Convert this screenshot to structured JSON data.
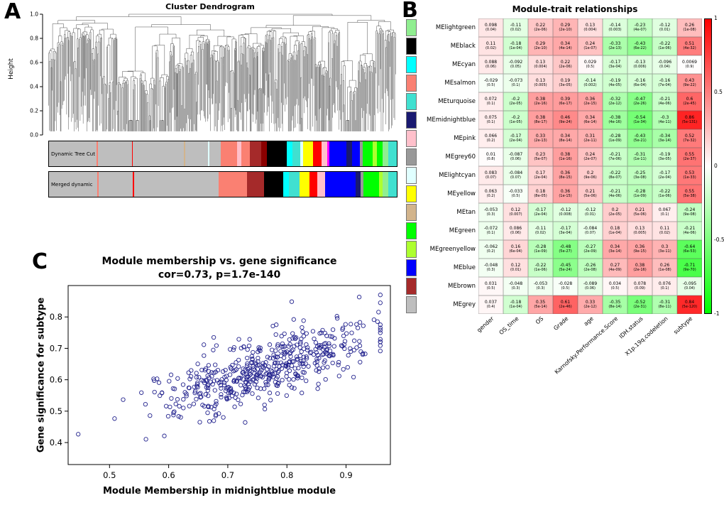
{
  "panel_labels": {
    "a": "A",
    "b": "B",
    "c": "C"
  },
  "chart_data": [
    {
      "type": "dendrogram",
      "title": "Cluster Dendrogram",
      "ylabel": "Height",
      "ylim": [
        0,
        1
      ],
      "yticks": [
        "1.0",
        "0.8",
        "0.6",
        "0.4",
        "0.2",
        "0.0"
      ],
      "bands": [
        {
          "label": "Dynamic Tree Cut",
          "segments": [
            [
              "#bebebe",
              17
            ],
            [
              "#fa8072",
              0.5
            ],
            [
              "#bebebe",
              12
            ],
            [
              "#ff0000",
              0.4
            ],
            [
              "#bebebe",
              18
            ],
            [
              "#d2b48c",
              0.6
            ],
            [
              "#bebebe",
              8
            ],
            [
              "#e0ffff",
              0.5
            ],
            [
              "#bebebe",
              4
            ],
            [
              "#fa8072",
              6
            ],
            [
              "#ffc0cb",
              1.5
            ],
            [
              "#fa8072",
              3
            ],
            [
              "#a52a2a",
              4
            ],
            [
              "#8b0000",
              2
            ],
            [
              "#000000",
              7
            ],
            [
              "#00ffff",
              2
            ],
            [
              "#40e0d0",
              3
            ],
            [
              "#e0ffff",
              1
            ],
            [
              "#ffff00",
              3.5
            ],
            [
              "#ff0000",
              3
            ],
            [
              "#ffc0cb",
              2
            ],
            [
              "#ff00ff",
              0.7
            ],
            [
              "#0000ff",
              6
            ],
            [
              "#191970",
              2
            ],
            [
              "#0000ff",
              3
            ],
            [
              "#999999",
              1
            ],
            [
              "#00ff00",
              3.5
            ],
            [
              "#adff2f",
              1.5
            ],
            [
              "#00ff00",
              2
            ],
            [
              "#90ee90",
              2
            ],
            [
              "#40e0d0",
              3
            ]
          ]
        },
        {
          "label": "Merged dynamic",
          "segments": [
            [
              "#bebebe",
              17.5
            ],
            [
              "#fa8072",
              0.5
            ],
            [
              "#bebebe",
              12.4
            ],
            [
              "#ff0000",
              0.4
            ],
            [
              "#bebebe",
              26.6
            ],
            [
              "#bebebe",
              4
            ],
            [
              "#fa8072",
              10.5
            ],
            [
              "#a52a2a",
              6
            ],
            [
              "#000000",
              7
            ],
            [
              "#00ffff",
              2
            ],
            [
              "#40e0d0",
              4
            ],
            [
              "#ffff00",
              3.5
            ],
            [
              "#ff0000",
              3
            ],
            [
              "#ffc0cb",
              2.7
            ],
            [
              "#0000ff",
              11
            ],
            [
              "#191970",
              2
            ],
            [
              "#999999",
              1
            ],
            [
              "#00ff00",
              5.5
            ],
            [
              "#adff2f",
              1.5
            ],
            [
              "#90ee90",
              2
            ],
            [
              "#40e0d0",
              3
            ]
          ]
        }
      ]
    },
    {
      "type": "heatmap",
      "title": "Module-trait relationships",
      "legend_ticks": [
        "1",
        "0.5",
        "0",
        "-0.5",
        "-1"
      ],
      "columns": [
        "gender",
        "OS_time",
        "OS",
        "Grade",
        "age",
        "Karnofsky.Performance.Score",
        "IDH.status",
        "X1p.19q.codeletion",
        "subtype"
      ],
      "rows": [
        {
          "label": "MElightgreen",
          "color": "#90ee90",
          "cells": [
            [
              "0.098",
              "(0.04)"
            ],
            [
              "-0.11",
              "(0.02)"
            ],
            [
              "0.22",
              "(2e-06)"
            ],
            [
              "0.29",
              "(2e-10)"
            ],
            [
              "0.13",
              "(0.004)"
            ],
            [
              "-0.14",
              "(0.003)"
            ],
            [
              "-0.23",
              "(4e-07)"
            ],
            [
              "-0.12",
              "(0.01)"
            ],
            [
              "0.26",
              "(1e-08)"
            ]
          ]
        },
        {
          "label": "MEblack",
          "color": "#000000",
          "cells": [
            [
              "0.11",
              "(0.02)"
            ],
            [
              "-0.18",
              "(1e-04)"
            ],
            [
              "0.29",
              "(2e-10)"
            ],
            [
              "0.34",
              "(4e-14)"
            ],
            [
              "0.24",
              "(1e-07)"
            ],
            [
              "-0.33",
              "(2e-13)"
            ],
            [
              "-0.43",
              "(6e-22)"
            ],
            [
              "-0.22",
              "(1e-06)"
            ],
            [
              "0.51",
              "(4e-32)"
            ]
          ]
        },
        {
          "label": "MEcyan",
          "color": "#00ffff",
          "cells": [
            [
              "0.088",
              "(0.06)"
            ],
            [
              "-0.092",
              "(0.05)"
            ],
            [
              "0.13",
              "(0.004)"
            ],
            [
              "0.22",
              "(2e-06)"
            ],
            [
              "0.029",
              "(0.5)"
            ],
            [
              "-0.17",
              "(3e-04)"
            ],
            [
              "-0.13",
              "(0.006)"
            ],
            [
              "-0.096",
              "(0.04)"
            ],
            [
              "0.0069",
              "(0.9)"
            ]
          ]
        },
        {
          "label": "MEsalmon",
          "color": "#fa8072",
          "cells": [
            [
              "-0.029",
              "(0.5)"
            ],
            [
              "-0.073",
              "(0.1)"
            ],
            [
              "0.13",
              "(0.005)"
            ],
            [
              "0.19",
              "(3e-05)"
            ],
            [
              "-0.14",
              "(0.002)"
            ],
            [
              "-0.19",
              "(4e-05)"
            ],
            [
              "-0.16",
              "(6e-04)"
            ],
            [
              "-0.16",
              "(7e-04)"
            ],
            [
              "0.43",
              "(9e-22)"
            ]
          ]
        },
        {
          "label": "MEturquoise",
          "color": "#40e0d0",
          "cells": [
            [
              "0.072",
              "(0.1)"
            ],
            [
              "-0.2",
              "(2e-05)"
            ],
            [
              "0.38",
              "(2e-16)"
            ],
            [
              "0.39",
              "(6e-17)"
            ],
            [
              "0.36",
              "(2e-15)"
            ],
            [
              "-0.32",
              "(2e-12)"
            ],
            [
              "-0.47",
              "(2e-26)"
            ],
            [
              "-0.21",
              "(4e-06)"
            ],
            [
              "0.6",
              "(2e-45)"
            ]
          ]
        },
        {
          "label": "MEmidnightblue",
          "color": "#191970",
          "cells": [
            [
              "0.075",
              "(0.1)"
            ],
            [
              "-0.2",
              "(1e-05)"
            ],
            [
              "0.38",
              "(8e-17)"
            ],
            [
              "0.46",
              "(9e-24)"
            ],
            [
              "0.34",
              "(6e-14)"
            ],
            [
              "-0.38",
              "(4e-16)"
            ],
            [
              "-0.54",
              "(1e-34)"
            ],
            [
              "-0.3",
              "(4e-11)"
            ],
            [
              "0.86",
              "(5e-131)"
            ]
          ]
        },
        {
          "label": "MEpink",
          "color": "#ffc0cb",
          "cells": [
            [
              "0.066",
              "(0.2)"
            ],
            [
              "-0.17",
              "(2e-04)"
            ],
            [
              "0.33",
              "(2e-13)"
            ],
            [
              "0.34",
              "(8e-14)"
            ],
            [
              "0.31",
              "(2e-11)"
            ],
            [
              "-0.28",
              "(1e-09)"
            ],
            [
              "-0.43",
              "(5e-21)"
            ],
            [
              "-0.34",
              "(3e-14)"
            ],
            [
              "0.52",
              "(7e-32)"
            ]
          ]
        },
        {
          "label": "MEgrey60",
          "color": "#999999",
          "cells": [
            [
              "0.01",
              "(0.8)"
            ],
            [
              "-0.087",
              "(0.06)"
            ],
            [
              "0.23",
              "(5e-07)"
            ],
            [
              "0.38",
              "(1e-16)"
            ],
            [
              "0.24",
              "(2e-07)"
            ],
            [
              "-0.21",
              "(7e-06)"
            ],
            [
              "-0.31",
              "(1e-11)"
            ],
            [
              "-0.19",
              "(3e-05)"
            ],
            [
              "0.55",
              "(2e-37)"
            ]
          ]
        },
        {
          "label": "MElightcyan",
          "color": "#e0ffff",
          "cells": [
            [
              "0.083",
              "(0.07)"
            ],
            [
              "-0.084",
              "(0.07)"
            ],
            [
              "0.17",
              "(2e-04)"
            ],
            [
              "0.36",
              "(8e-15)"
            ],
            [
              "0.2",
              "(9e-06)"
            ],
            [
              "-0.22",
              "(8e-07)"
            ],
            [
              "-0.25",
              "(3e-08)"
            ],
            [
              "-0.17",
              "(2e-04)"
            ],
            [
              "0.53",
              "(1e-33)"
            ]
          ]
        },
        {
          "label": "MEyellow",
          "color": "#ffff00",
          "cells": [
            [
              "0.063",
              "(0.2)"
            ],
            [
              "-0.033",
              "(0.5)"
            ],
            [
              "0.18",
              "(8e-05)"
            ],
            [
              "0.36",
              "(1e-15)"
            ],
            [
              "0.21",
              "(5e-06)"
            ],
            [
              "-0.21",
              "(4e-06)"
            ],
            [
              "-0.28",
              "(1e-09)"
            ],
            [
              "-0.22",
              "(1e-06)"
            ],
            [
              "0.55",
              "(5e-38)"
            ]
          ]
        },
        {
          "label": "MEtan",
          "color": "#d2b48c",
          "cells": [
            [
              "-0.053",
              "(0.3)"
            ],
            [
              "0.12",
              "(0.007)"
            ],
            [
              "-0.17",
              "(2e-04)"
            ],
            [
              "-0.12",
              "(0.008)"
            ],
            [
              "-0.12",
              "(0.01)"
            ],
            [
              "0.2",
              "(2e-05)"
            ],
            [
              "0.21",
              "(5e-06)"
            ],
            [
              "0.067",
              "(0.1)"
            ],
            [
              "-0.24",
              "(9e-08)"
            ]
          ]
        },
        {
          "label": "MEgreen",
          "color": "#00ff00",
          "cells": [
            [
              "-0.072",
              "(0.1)"
            ],
            [
              "0.086",
              "(0.06)"
            ],
            [
              "-0.11",
              "(0.02)"
            ],
            [
              "-0.17",
              "(3e-04)"
            ],
            [
              "-0.084",
              "(0.07)"
            ],
            [
              "0.18",
              "(1e-04)"
            ],
            [
              "0.13",
              "(0.005)"
            ],
            [
              "0.11",
              "(0.02)"
            ],
            [
              "-0.21",
              "(4e-06)"
            ]
          ]
        },
        {
          "label": "MEgreenyellow",
          "color": "#adff2f",
          "cells": [
            [
              "-0.062",
              "(0.2)"
            ],
            [
              "0.16",
              "(6e-04)"
            ],
            [
              "-0.28",
              "(1e-09)"
            ],
            [
              "-0.48",
              "(5e-27)"
            ],
            [
              "-0.27",
              "(2e-09)"
            ],
            [
              "0.34",
              "(3e-14)"
            ],
            [
              "0.36",
              "(9e-15)"
            ],
            [
              "0.3",
              "(3e-11)"
            ],
            [
              "-0.64",
              "(6e-53)"
            ]
          ]
        },
        {
          "label": "MEblue",
          "color": "#0000ff",
          "cells": [
            [
              "-0.048",
              "(0.3)"
            ],
            [
              "0.12",
              "(0.01)"
            ],
            [
              "-0.22",
              "(1e-06)"
            ],
            [
              "-0.45",
              "(5e-24)"
            ],
            [
              "-0.26",
              "(2e-08)"
            ],
            [
              "0.27",
              "(4e-09)"
            ],
            [
              "0.38",
              "(2e-16)"
            ],
            [
              "0.26",
              "(1e-08)"
            ],
            [
              "-0.71",
              "(9e-70)"
            ]
          ]
        },
        {
          "label": "MEbrown",
          "color": "#a52a2a",
          "cells": [
            [
              "0.031",
              "(0.5)"
            ],
            [
              "-0.048",
              "(0.3)"
            ],
            [
              "-0.053",
              "(0.3)"
            ],
            [
              "-0.028",
              "(0.5)"
            ],
            [
              "-0.089",
              "(0.06)"
            ],
            [
              "0.034",
              "(0.5)"
            ],
            [
              "0.078",
              "(0.09)"
            ],
            [
              "0.076",
              "(0.1)"
            ],
            [
              "-0.095",
              "(0.04)"
            ]
          ]
        },
        {
          "label": "MEgrey",
          "color": "#bebebe",
          "cells": [
            [
              "0.037",
              "(0.4)"
            ],
            [
              "-0.18",
              "(1e-04)"
            ],
            [
              "0.35",
              "(5e-14)"
            ],
            [
              "0.61",
              "(2e-46)"
            ],
            [
              "0.33",
              "(2e-12)"
            ],
            [
              "-0.35",
              "(8e-14)"
            ],
            [
              "-0.52",
              "(2e-31)"
            ],
            [
              "-0.31",
              "(8e-11)"
            ],
            [
              "0.84",
              "(5e-120)"
            ]
          ]
        }
      ]
    },
    {
      "type": "scatter",
      "title": "Module membership vs. gene significance",
      "subtitle": "cor=0.73, p=1.7e-140",
      "xlabel": "Module Membership in midnightblue module",
      "ylabel": "Gene significance for subtype",
      "xticks": [
        "0.5",
        "0.6",
        "0.7",
        "0.8",
        "0.9"
      ],
      "yticks": [
        "0.4",
        "0.5",
        "0.6",
        "0.7",
        "0.8"
      ],
      "xlim": [
        0.43,
        0.975
      ],
      "ylim": [
        0.33,
        0.9
      ],
      "n_points": 520,
      "correlation": 0.73,
      "point_color": "#23238E"
    }
  ]
}
